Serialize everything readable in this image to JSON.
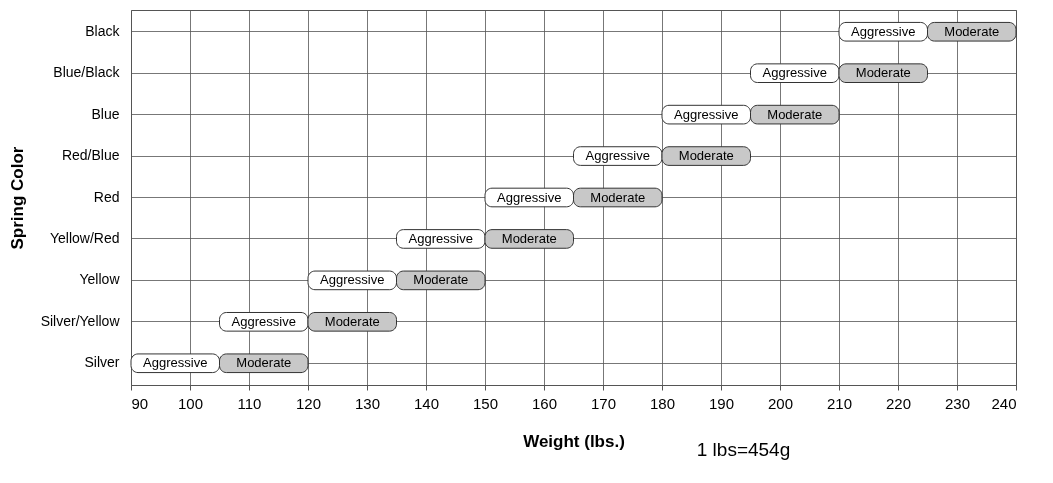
{
  "chart_data": {
    "type": "bar",
    "orientation": "horizontal",
    "xlabel": "Weight (lbs.)",
    "ylabel": "Spring Color",
    "annotations": [
      "1 lbs=454g"
    ],
    "categories": [
      "Black",
      "Blue/Black",
      "Blue",
      "Red/Blue",
      "Red",
      "Yellow/Red",
      "Yellow",
      "Silver/Yellow",
      "Silver"
    ],
    "series": [
      {
        "name": "Aggressive",
        "color": "#ffffff",
        "base": [
          210,
          195,
          180,
          165,
          150,
          135,
          120,
          105,
          90
        ],
        "values": [
          15,
          15,
          15,
          15,
          15,
          15,
          15,
          15,
          15
        ]
      },
      {
        "name": "Moderate",
        "color": "#c8c8c8",
        "base": [
          225,
          210,
          195,
          180,
          165,
          150,
          135,
          120,
          105
        ],
        "values": [
          15,
          15,
          15,
          15,
          15,
          15,
          15,
          15,
          15
        ]
      }
    ],
    "xlim": [
      90,
      240
    ],
    "xticks": [
      90,
      100,
      110,
      120,
      130,
      140,
      150,
      160,
      170,
      180,
      190,
      200,
      210,
      220,
      230,
      240
    ],
    "grid": true,
    "legend": false
  }
}
